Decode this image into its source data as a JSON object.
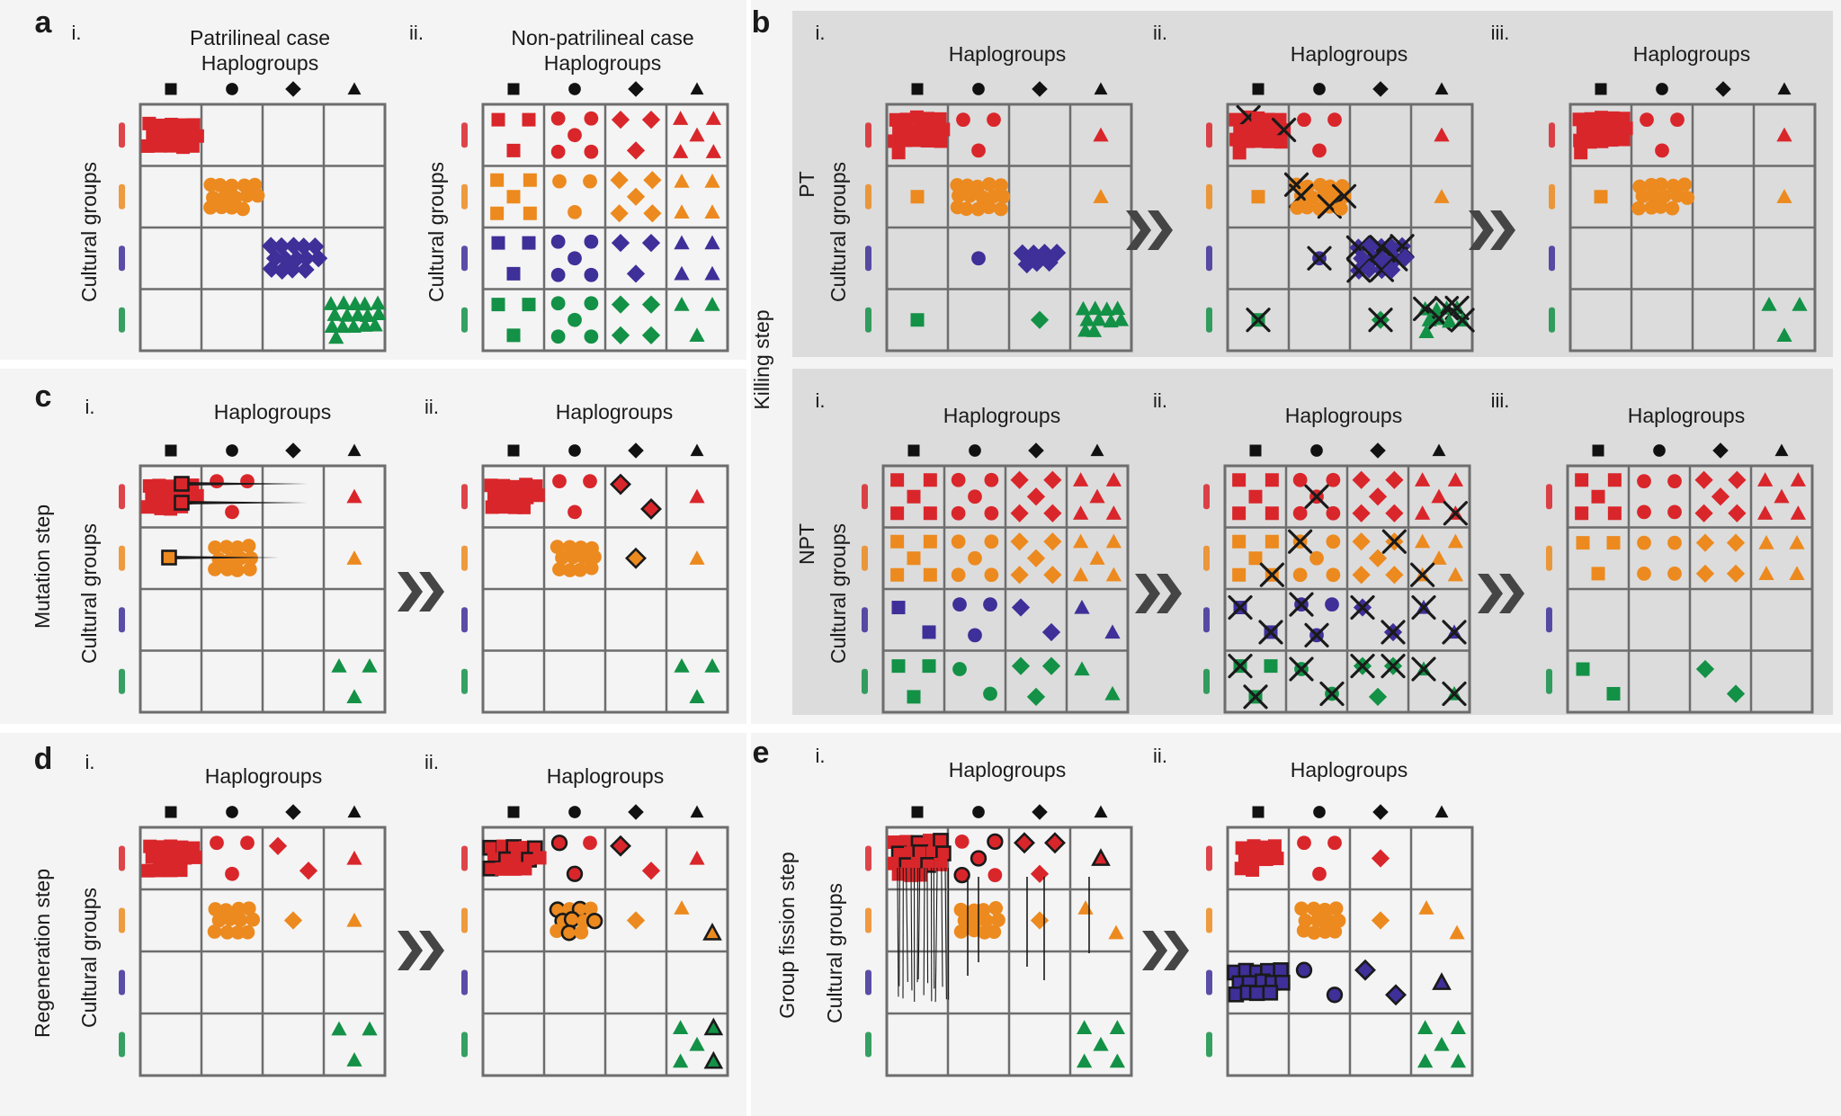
{
  "panel_letters": [
    "a",
    "b",
    "c",
    "d",
    "e"
  ],
  "roman": {
    "i": "i.",
    "ii": "ii.",
    "iii": "iii."
  },
  "titles": {
    "patrilineal": [
      "Patrilineal case",
      "Haplogroups"
    ],
    "non_patrilineal": [
      "Non-patrilineal case",
      "Haplogroups"
    ],
    "haplogroups": "Haplogroups"
  },
  "axis_labels": {
    "cultural_groups": "Cultural groups",
    "killing_step": "Killing step",
    "mutation_step": "Mutation step",
    "regeneration_step": "Regeneration step",
    "group_fission_step": "Group fission step",
    "pt": "PT",
    "npt": "NPT"
  },
  "haplogroup_symbols": [
    "square",
    "circle",
    "diamond",
    "triangle"
  ],
  "cultural_group_colors": [
    "#d9262b",
    "#ec8a1f",
    "#3e2f99",
    "#139146"
  ],
  "colors": {
    "grid": "#6d6d6d",
    "panel_light": "#f4f4f4",
    "panel_gray": "#dcdcdc",
    "chevron": "#454545",
    "kill_mark": "#1a1a1a"
  }
}
